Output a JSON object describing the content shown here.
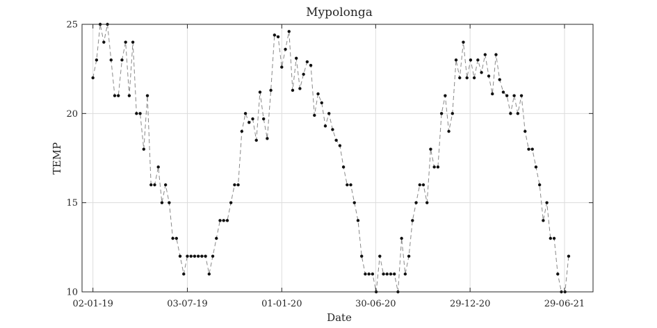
{
  "chart_data": {
    "type": "line",
    "title": "Mypolonga",
    "xlabel": "Date",
    "ylabel": "TEMP",
    "ylim": [
      10,
      25
    ],
    "yticks": [
      10,
      15,
      20,
      25
    ],
    "xticks": [
      {
        "date": "2019-01-02",
        "label": "02-01-19"
      },
      {
        "date": "2019-07-03",
        "label": "03-07-19"
      },
      {
        "date": "2020-01-01",
        "label": "01-01-20"
      },
      {
        "date": "2020-06-30",
        "label": "30-06-20"
      },
      {
        "date": "2020-12-29",
        "label": "29-12-20"
      },
      {
        "date": "2021-06-29",
        "label": "29-06-21"
      }
    ],
    "xlim": [
      "2018-12-12",
      "2021-08-23"
    ],
    "grid": true,
    "line_style": "dashed",
    "marker": "dot",
    "colors": {
      "line": "#888888",
      "marker": "#111111"
    },
    "series": [
      {
        "x": [
          "2019-01-02",
          "2019-01-09",
          "2019-01-16",
          "2019-01-23",
          "2019-01-30",
          "2019-02-06",
          "2019-02-13",
          "2019-02-20",
          "2019-02-27",
          "2019-03-06",
          "2019-03-13",
          "2019-03-20",
          "2019-03-27",
          "2019-04-03",
          "2019-04-10",
          "2019-04-17",
          "2019-04-24",
          "2019-05-01",
          "2019-05-08",
          "2019-05-15",
          "2019-05-22",
          "2019-05-29",
          "2019-06-05",
          "2019-06-12",
          "2019-06-19",
          "2019-06-26",
          "2019-07-03",
          "2019-07-10",
          "2019-07-17",
          "2019-07-24",
          "2019-07-31",
          "2019-08-07",
          "2019-08-14",
          "2019-08-21",
          "2019-08-28",
          "2019-09-04",
          "2019-09-11",
          "2019-09-18",
          "2019-09-25",
          "2019-10-02",
          "2019-10-09",
          "2019-10-16",
          "2019-10-23",
          "2019-10-30",
          "2019-11-06",
          "2019-11-13",
          "2019-11-20",
          "2019-11-27",
          "2019-12-04",
          "2019-12-11",
          "2019-12-18",
          "2019-12-25",
          "2020-01-01",
          "2020-01-08",
          "2020-01-15",
          "2020-01-22",
          "2020-01-29",
          "2020-02-05",
          "2020-02-12",
          "2020-02-19",
          "2020-02-26",
          "2020-03-04",
          "2020-03-11",
          "2020-03-18",
          "2020-03-25",
          "2020-04-01",
          "2020-04-08",
          "2020-04-15",
          "2020-04-22",
          "2020-04-29",
          "2020-05-06",
          "2020-05-13",
          "2020-05-20",
          "2020-05-27",
          "2020-06-03",
          "2020-06-10",
          "2020-06-17",
          "2020-06-24",
          "2020-07-01",
          "2020-07-08",
          "2020-07-15",
          "2020-07-22",
          "2020-07-29",
          "2020-08-05",
          "2020-08-12",
          "2020-08-19",
          "2020-08-26",
          "2020-09-02",
          "2020-09-09",
          "2020-09-16",
          "2020-09-23",
          "2020-09-30",
          "2020-10-07",
          "2020-10-14",
          "2020-10-21",
          "2020-10-28",
          "2020-11-04",
          "2020-11-11",
          "2020-11-18",
          "2020-11-25",
          "2020-12-02",
          "2020-12-09",
          "2020-12-16",
          "2020-12-23",
          "2020-12-30",
          "2021-01-06",
          "2021-01-13",
          "2021-01-20",
          "2021-01-27",
          "2021-02-03",
          "2021-02-10",
          "2021-02-17",
          "2021-02-24",
          "2021-03-03",
          "2021-03-10",
          "2021-03-17",
          "2021-03-24",
          "2021-03-31",
          "2021-04-07",
          "2021-04-14",
          "2021-04-21",
          "2021-04-28",
          "2021-05-05",
          "2021-05-12",
          "2021-05-19",
          "2021-05-26",
          "2021-06-02",
          "2021-06-09",
          "2021-06-16",
          "2021-06-23",
          "2021-06-30",
          "2021-07-07"
        ],
        "y": [
          22,
          23,
          25,
          24,
          25,
          23,
          21,
          21,
          23,
          24,
          21,
          24,
          20,
          20,
          18,
          21,
          16,
          16,
          17,
          15,
          16,
          15,
          13,
          13,
          12,
          11,
          12,
          12,
          12,
          12,
          12,
          12,
          11,
          12,
          13,
          14,
          14,
          14,
          15,
          16,
          16,
          19,
          20,
          19.5,
          19.7,
          18.5,
          21.2,
          19.7,
          18.6,
          21.3,
          24.4,
          24.3,
          22.6,
          23.6,
          24.6,
          21.3,
          23.1,
          21.4,
          22.2,
          22.9,
          22.7,
          19.9,
          21.1,
          20.6,
          19.3,
          20,
          19.1,
          18.5,
          18.2,
          17,
          16,
          16,
          15,
          14,
          12,
          11,
          11,
          11,
          10,
          12,
          11,
          11,
          11,
          11,
          10,
          13,
          11,
          12,
          14,
          15,
          16,
          16,
          15,
          18,
          17,
          17,
          20,
          21,
          19,
          20,
          23,
          22,
          24,
          22,
          23,
          22,
          23,
          22.3,
          23.3,
          22.1,
          21.1,
          23.3,
          21.9,
          21.2,
          21,
          20,
          21,
          20,
          21,
          19,
          18,
          18,
          17,
          16,
          14,
          15,
          13,
          13,
          11,
          10,
          10,
          12
        ]
      }
    ]
  }
}
